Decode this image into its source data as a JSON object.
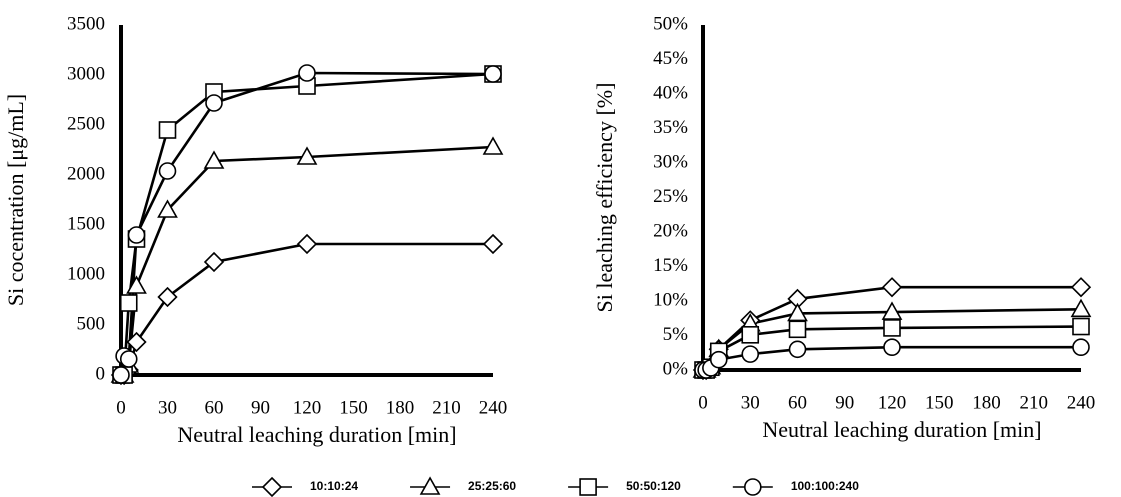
{
  "chart_data": [
    {
      "type": "line",
      "xlabel": "Neutral leaching duration [min]",
      "ylabel": "Si cocentration [μg/mL]",
      "x": [
        0,
        2,
        5,
        10,
        30,
        60,
        120,
        240
      ],
      "xlim": [
        0,
        240
      ],
      "xticks": [
        0,
        30,
        60,
        90,
        120,
        150,
        180,
        210,
        240
      ],
      "ylim": [
        0,
        3500
      ],
      "yticks": [
        0,
        500,
        1000,
        1500,
        2000,
        2500,
        3000,
        3500
      ],
      "series": [
        {
          "name": "10:10:24",
          "marker": "diamond",
          "color": "#000000",
          "values": [
            0,
            0,
            50,
            330,
            780,
            1130,
            1310,
            1310
          ]
        },
        {
          "name": "25:25:60",
          "marker": "triangle",
          "color": "#000000",
          "values": [
            0,
            0,
            100,
            890,
            1650,
            2140,
            2180,
            2280
          ]
        },
        {
          "name": "50:50:120",
          "marker": "square",
          "color": "#000000",
          "values": [
            0,
            0,
            720,
            1360,
            2450,
            2830,
            2890,
            3010
          ]
        },
        {
          "name": "100:100:240",
          "marker": "circle",
          "color": "#000000",
          "values": [
            0,
            190,
            160,
            1400,
            2040,
            2720,
            3020,
            3010
          ]
        }
      ]
    },
    {
      "type": "line",
      "xlabel": "Neutral leaching duration [min]",
      "ylabel": "Si leaching efficiency [%]",
      "x": [
        0,
        2,
        5,
        10,
        30,
        60,
        120,
        240
      ],
      "xlim": [
        0,
        240
      ],
      "xticks": [
        0,
        30,
        60,
        90,
        120,
        150,
        180,
        210,
        240
      ],
      "ylim": [
        0,
        50
      ],
      "yticks": [
        {
          "value": 0,
          "label": "0%"
        },
        {
          "value": 5,
          "label": "5%"
        },
        {
          "value": 10,
          "label": "10%"
        },
        {
          "value": 15,
          "label": "15%"
        },
        {
          "value": 20,
          "label": "20%"
        },
        {
          "value": 25,
          "label": "25%"
        },
        {
          "value": 30,
          "label": "30%"
        },
        {
          "value": 35,
          "label": "35%"
        },
        {
          "value": 40,
          "label": "40%"
        },
        {
          "value": 45,
          "label": "45%"
        },
        {
          "value": 50,
          "label": "50%"
        }
      ],
      "series": [
        {
          "marker": "diamond",
          "color": "#000000",
          "values": [
            0,
            0,
            0.5,
            3,
            7.2,
            10.3,
            12,
            12
          ]
        },
        {
          "marker": "triangle",
          "color": "#000000",
          "values": [
            0,
            0,
            0.5,
            3,
            6.7,
            8.2,
            8.4,
            8.8
          ]
        },
        {
          "marker": "square",
          "color": "#000000",
          "values": [
            0,
            0,
            0.4,
            2.7,
            5.1,
            5.9,
            6.1,
            6.3
          ]
        },
        {
          "marker": "circle",
          "color": "#000000",
          "values": [
            0,
            0,
            0.3,
            1.5,
            2.3,
            3,
            3.3,
            3.3
          ]
        }
      ]
    }
  ]
}
